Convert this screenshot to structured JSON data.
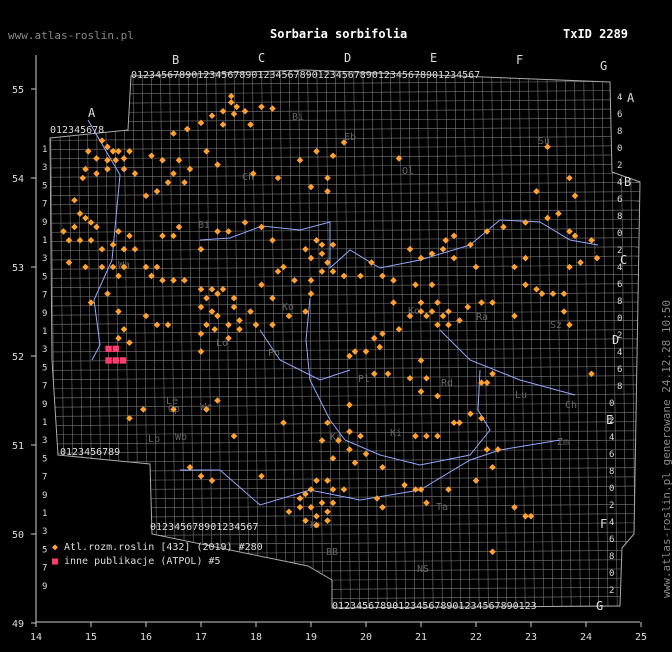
{
  "title": "Sorbaria sorbifolia",
  "taxid": "TxID 2289",
  "site": "www.atlas-roslin.pl",
  "generated": "www.atlas-roslin.pl generowane 24.12.28 10:50",
  "colors": {
    "atlas": "#ffa031",
    "publications": "#ff3c6e",
    "grid": "#777777",
    "river": "#8fa9ff"
  },
  "axes": {
    "x_ticks": [
      "14",
      "15",
      "16",
      "17",
      "18",
      "19",
      "20",
      "21",
      "22",
      "23",
      "24",
      "25"
    ],
    "y_ticks": [
      "55",
      "54",
      "53",
      "52",
      "51",
      "50",
      "49"
    ]
  },
  "grid_letters": {
    "top": [
      "A",
      "B",
      "C",
      "D",
      "E",
      "F",
      "G"
    ],
    "right": [
      "A",
      "B",
      "C",
      "D",
      "E",
      "F",
      "G"
    ]
  },
  "legend": [
    {
      "symbol": "diamond-icon",
      "label": "Atl.rozm.roslin [432] (2019) #280"
    },
    {
      "symbol": "square-icon",
      "label": "inne publikacje (ATPOL) #5"
    }
  ],
  "region_labels": [
    "Eb",
    "Ol",
    "Su",
    "Ch",
    "Bi",
    "Ko",
    "Lo",
    "Po",
    "Pl",
    "Rd",
    "Lu",
    "Ch",
    "Zm",
    "Wr",
    "Op",
    "Ka",
    "Ki",
    "Kr",
    "Ta",
    "BB",
    "NS",
    "Le",
    "Lb",
    "Wb",
    "Ra",
    "Sz",
    "Ko",
    "Wa",
    "Bi"
  ],
  "records": {
    "atlas_count": 280,
    "publications_count": 5
  }
}
